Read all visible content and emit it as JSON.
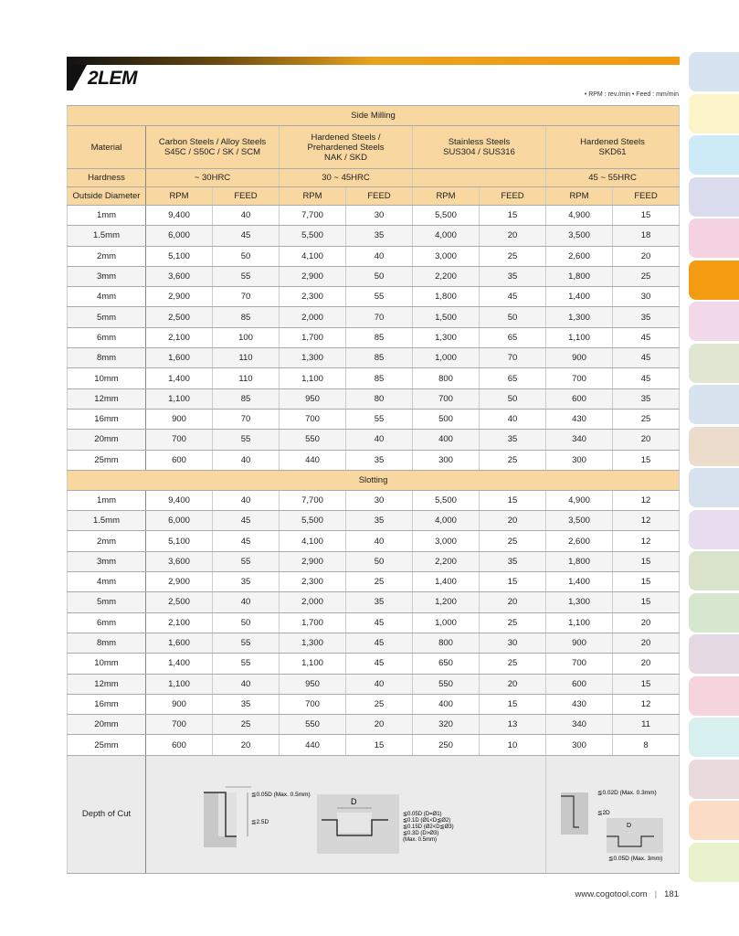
{
  "title": "2LEM",
  "units": "• RPM : rev./min  • Feed : mm/min",
  "sections": {
    "side": "Side Milling",
    "slot": "Slotting"
  },
  "header": {
    "material": "Material",
    "materials": [
      {
        "l1": "Carbon Steels / Alloy Steels",
        "l2": "S45C / S50C / SK / SCM",
        "l3": ""
      },
      {
        "l1": "Hardened Steels /",
        "l2": "Prehardened Steels",
        "l3": "NAK / SKD"
      },
      {
        "l1": "Stainless Steels",
        "l2": "SUS304 / SUS316",
        "l3": ""
      },
      {
        "l1": "Hardened Steels",
        "l2": "SKD61",
        "l3": ""
      }
    ],
    "hardness": "Hardness",
    "hardness_values": [
      "~ 30HRC",
      "30 ~ 45HRC",
      "",
      "45 ~ 55HRC"
    ],
    "od": "Outside Diameter",
    "rpm": "RPM",
    "feed": "FEED"
  },
  "side_milling": [
    [
      "1mm",
      "9,400",
      "40",
      "7,700",
      "30",
      "5,500",
      "15",
      "4,900",
      "15"
    ],
    [
      "1.5mm",
      "6,000",
      "45",
      "5,500",
      "35",
      "4,000",
      "20",
      "3,500",
      "18"
    ],
    [
      "2mm",
      "5,100",
      "50",
      "4,100",
      "40",
      "3,000",
      "25",
      "2,600",
      "20"
    ],
    [
      "3mm",
      "3,600",
      "55",
      "2,900",
      "50",
      "2,200",
      "35",
      "1,800",
      "25"
    ],
    [
      "4mm",
      "2,900",
      "70",
      "2,300",
      "55",
      "1,800",
      "45",
      "1,400",
      "30"
    ],
    [
      "5mm",
      "2,500",
      "85",
      "2,000",
      "70",
      "1,500",
      "50",
      "1,300",
      "35"
    ],
    [
      "6mm",
      "2,100",
      "100",
      "1,700",
      "85",
      "1,300",
      "65",
      "1,100",
      "45"
    ],
    [
      "8mm",
      "1,600",
      "110",
      "1,300",
      "85",
      "1,000",
      "70",
      "900",
      "45"
    ],
    [
      "10mm",
      "1,400",
      "110",
      "1,100",
      "85",
      "800",
      "65",
      "700",
      "45"
    ],
    [
      "12mm",
      "1,100",
      "85",
      "950",
      "80",
      "700",
      "50",
      "600",
      "35"
    ],
    [
      "16mm",
      "900",
      "70",
      "700",
      "55",
      "500",
      "40",
      "430",
      "25"
    ],
    [
      "20mm",
      "700",
      "55",
      "550",
      "40",
      "400",
      "35",
      "340",
      "20"
    ],
    [
      "25mm",
      "600",
      "40",
      "440",
      "35",
      "300",
      "25",
      "300",
      "15"
    ]
  ],
  "slotting": [
    [
      "1mm",
      "9,400",
      "40",
      "7,700",
      "30",
      "5,500",
      "15",
      "4,900",
      "12"
    ],
    [
      "1.5mm",
      "6,000",
      "45",
      "5,500",
      "35",
      "4,000",
      "20",
      "3,500",
      "12"
    ],
    [
      "2mm",
      "5,100",
      "45",
      "4,100",
      "40",
      "3,000",
      "25",
      "2,600",
      "12"
    ],
    [
      "3mm",
      "3,600",
      "55",
      "2,900",
      "50",
      "2,200",
      "35",
      "1,800",
      "15"
    ],
    [
      "4mm",
      "2,900",
      "35",
      "2,300",
      "25",
      "1,400",
      "15",
      "1,400",
      "15"
    ],
    [
      "5mm",
      "2,500",
      "40",
      "2,000",
      "35",
      "1,200",
      "20",
      "1,300",
      "15"
    ],
    [
      "6mm",
      "2,100",
      "50",
      "1,700",
      "45",
      "1,000",
      "25",
      "1,100",
      "20"
    ],
    [
      "8mm",
      "1,600",
      "55",
      "1,300",
      "45",
      "800",
      "30",
      "900",
      "20"
    ],
    [
      "10mm",
      "1,400",
      "55",
      "1,100",
      "45",
      "650",
      "25",
      "700",
      "20"
    ],
    [
      "12mm",
      "1,100",
      "40",
      "950",
      "40",
      "550",
      "20",
      "600",
      "15"
    ],
    [
      "16mm",
      "900",
      "35",
      "700",
      "25",
      "400",
      "15",
      "430",
      "12"
    ],
    [
      "20mm",
      "700",
      "25",
      "550",
      "20",
      "320",
      "13",
      "340",
      "11"
    ],
    [
      "25mm",
      "600",
      "20",
      "440",
      "15",
      "250",
      "10",
      "300",
      "8"
    ]
  ],
  "depth": {
    "label": "Depth of Cut",
    "a_top": "≦0.05D (Max. 0.5mm)",
    "a_side": "≦2.5D",
    "b_d": "D",
    "b_1": "≦0.05D  (D=Ø1)",
    "b_2": "≦0.1D  (Ø1<D≦Ø2)",
    "b_3": "≦0.15D  (Ø2<D≦Ø3)",
    "b_4": "≦0.3D  (D>Ø3)",
    "b_5": "(Max. 0.5mm)",
    "c_top": "≦0.02D (Max. 0.3mm)",
    "c_side": "≦2D",
    "c_d": "D",
    "c_bot": "≦0.05D (Max. 3mm)"
  },
  "side_tab_colors": [
    "#d6e4f2",
    "#fdf5c9",
    "#cdeaf7",
    "#d9dcec",
    "#f5d2e2",
    "#f39c12",
    "#f2d9ea",
    "#dfe7d3",
    "#d8e3ef",
    "#ecdccb",
    "#d8e2ee",
    "#e8dcef",
    "#d9e3cb",
    "#d7e6cf",
    "#e4d9e3",
    "#f6d4dc",
    "#d7efee",
    "#ead9dd",
    "#fbdcc6",
    "#e8f2cc"
  ],
  "footer": {
    "url": "www.cogotool.com",
    "page": "181"
  }
}
